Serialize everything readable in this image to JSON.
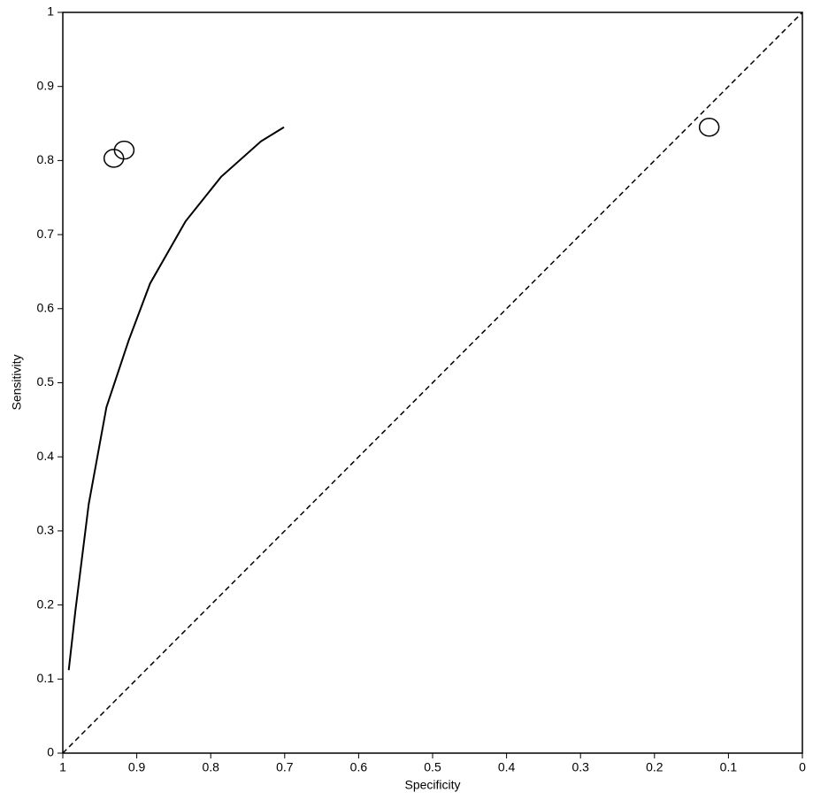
{
  "chart_data": {
    "type": "scatter",
    "x_label": "Specificity",
    "y_label": "Sensitivity",
    "xlim": [
      1,
      0
    ],
    "ylim": [
      0,
      1
    ],
    "xticks": [
      1,
      0.9,
      0.8,
      0.7,
      0.6,
      0.5,
      0.4,
      0.3,
      0.2,
      0.1,
      0
    ],
    "yticks": [
      0,
      0.1,
      0.2,
      0.3,
      0.4,
      0.5,
      0.6,
      0.7,
      0.8,
      0.9,
      1
    ],
    "grid": false,
    "series": [
      {
        "type": "scatter",
        "color": "#000000",
        "x": [
          0.931,
          0.917,
          0.126
        ],
        "values": [
          0.803,
          0.814,
          0.845
        ]
      },
      {
        "type": "line",
        "color": "#000000",
        "dashed": false,
        "x": [
          0.992,
          0.983,
          0.965,
          0.941,
          0.911,
          0.882,
          0.834,
          0.786,
          0.732,
          0.701
        ],
        "values": [
          0.112,
          0.192,
          0.336,
          0.467,
          0.557,
          0.634,
          0.718,
          0.778,
          0.826,
          0.845
        ]
      },
      {
        "type": "line",
        "color": "#000000",
        "dashed": true,
        "x": [
          1,
          0
        ],
        "values": [
          0,
          1
        ]
      }
    ]
  }
}
